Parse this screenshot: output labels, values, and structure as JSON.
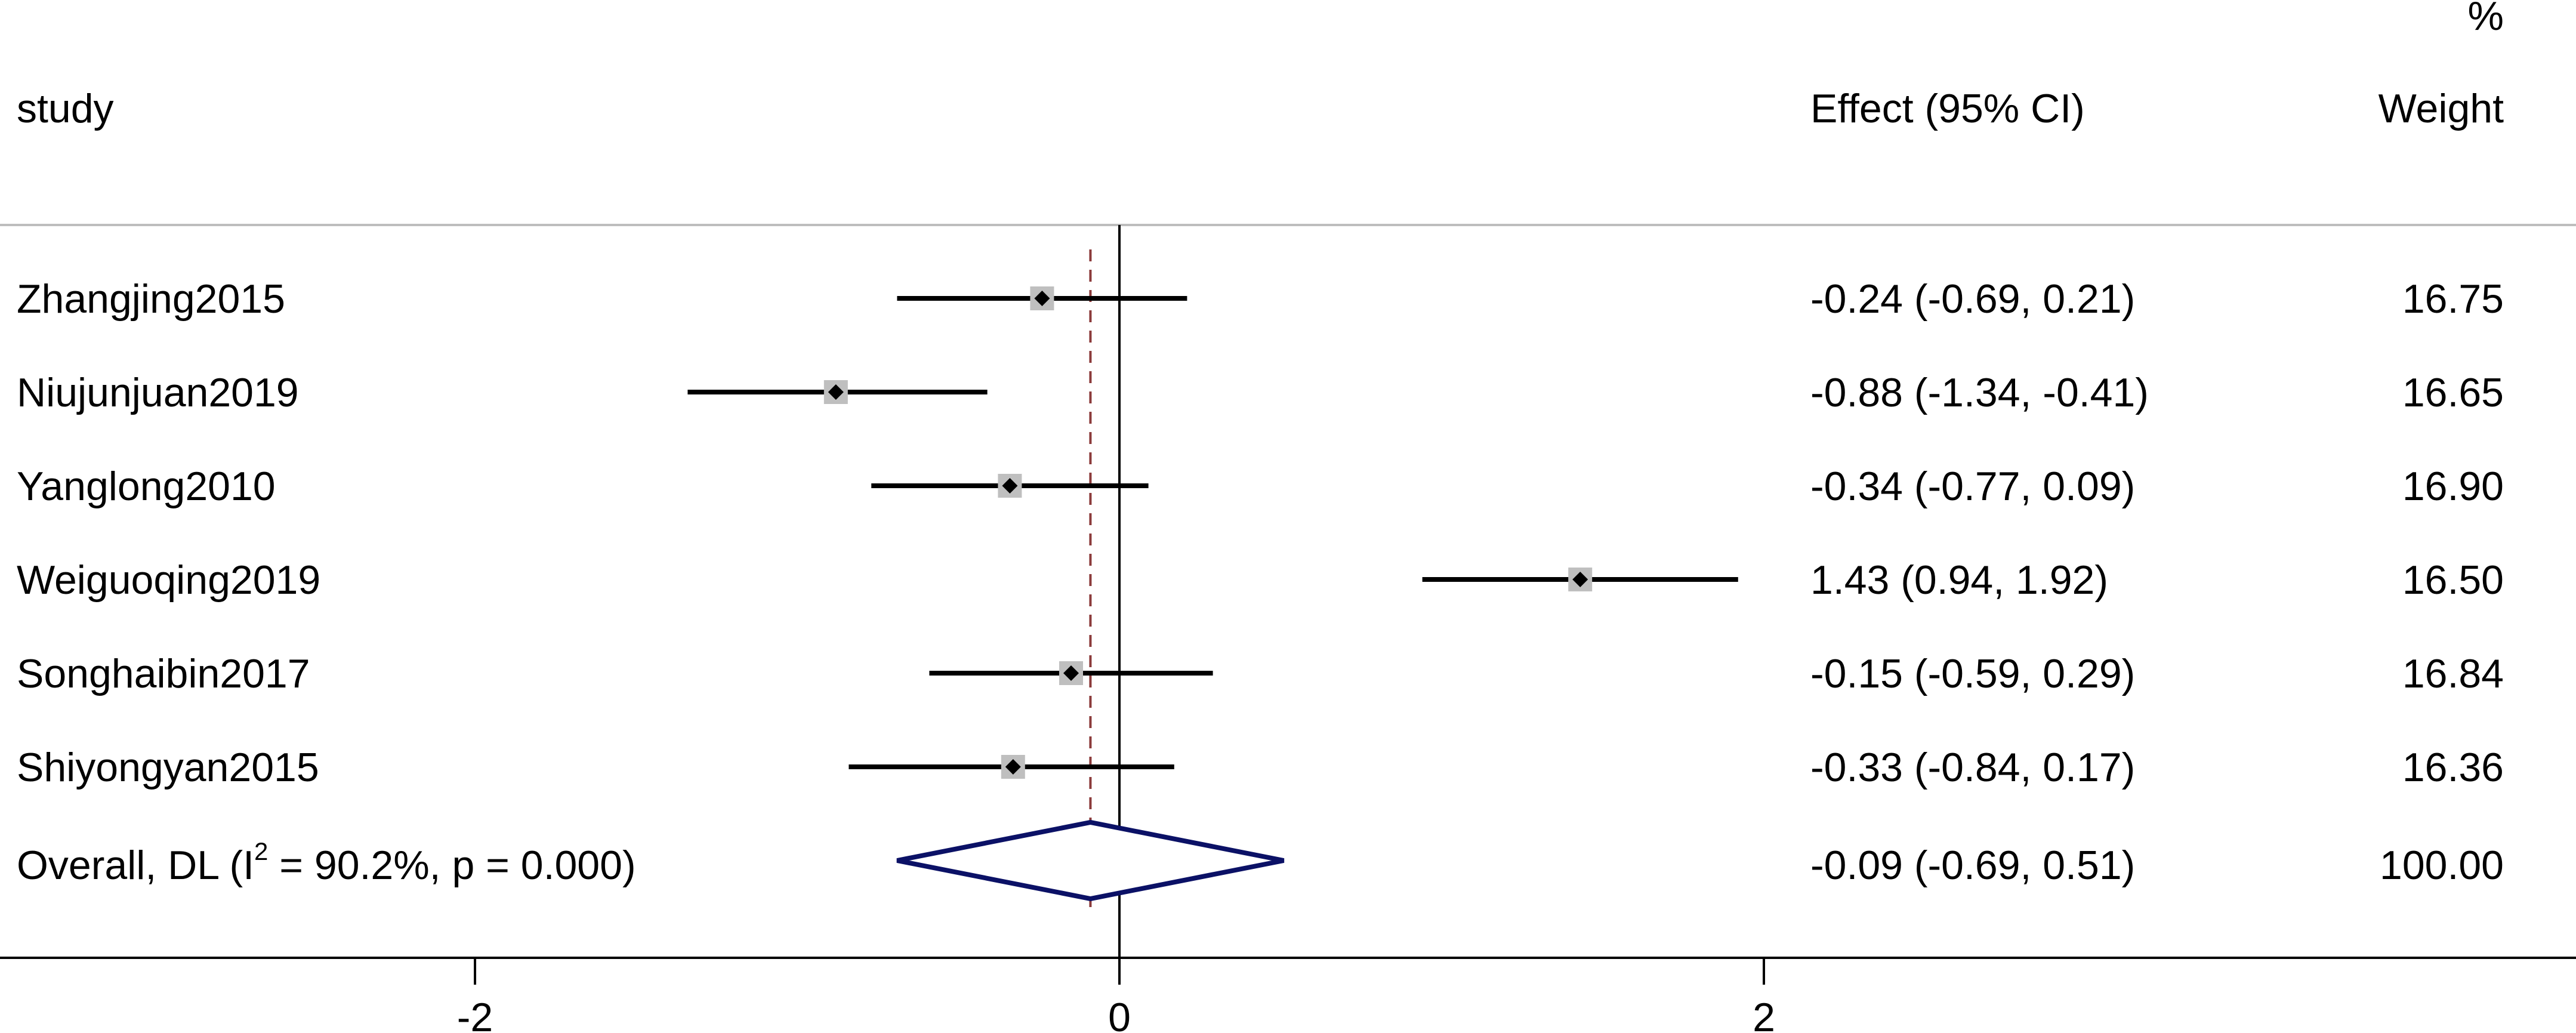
{
  "chart_data": {
    "type": "forest",
    "header": {
      "study_label": "study",
      "effect_label": "Effect (95% CI)",
      "weight_label_top": "%",
      "weight_label": "Weight"
    },
    "studies": [
      {
        "name": "Zhangjing2015",
        "effect": -0.24,
        "lower": -0.69,
        "upper": 0.21,
        "effect_text": "-0.24 (-0.69, 0.21)",
        "weight": 16.75,
        "weight_text": "16.75"
      },
      {
        "name": "Niujunjuan2019",
        "effect": -0.88,
        "lower": -1.34,
        "upper": -0.41,
        "effect_text": "-0.88 (-1.34, -0.41)",
        "weight": 16.65,
        "weight_text": "16.65"
      },
      {
        "name": "Yanglong2010",
        "effect": -0.34,
        "lower": -0.77,
        "upper": 0.09,
        "effect_text": "-0.34 (-0.77, 0.09)",
        "weight": 16.9,
        "weight_text": "16.90"
      },
      {
        "name": "Weiguoqing2019",
        "effect": 1.43,
        "lower": 0.94,
        "upper": 1.92,
        "effect_text": "1.43 (0.94, 1.92)",
        "weight": 16.5,
        "weight_text": "16.50"
      },
      {
        "name": "Songhaibin2017",
        "effect": -0.15,
        "lower": -0.59,
        "upper": 0.29,
        "effect_text": "-0.15 (-0.59, 0.29)",
        "weight": 16.84,
        "weight_text": "16.84"
      },
      {
        "name": "Shiyongyan2015",
        "effect": -0.33,
        "lower": -0.84,
        "upper": 0.17,
        "effect_text": "-0.33 (-0.84, 0.17)",
        "weight": 16.36,
        "weight_text": "16.36"
      }
    ],
    "overall": {
      "label_prefix": "Overall, DL (I",
      "label_sup": "2",
      "label_suffix": " = 90.2%, p = 0.000)",
      "effect": -0.09,
      "lower": -0.69,
      "upper": 0.51,
      "effect_text": "-0.09 (-0.69, 0.51)",
      "weight_text": "100.00"
    },
    "xaxis": {
      "ticks": [
        -2,
        0,
        2
      ],
      "tick_labels": [
        "-2",
        "0",
        "2"
      ],
      "xlim": [
        -3.46,
        4.5
      ]
    },
    "colors": {
      "ci_line": "#000000",
      "marker_box": "#bfbfbf",
      "point": "#000000",
      "diamond": "#0b1166",
      "overall_line": "#8b3a3a",
      "null_line": "#000000",
      "separator": "#bdbdbd"
    }
  }
}
